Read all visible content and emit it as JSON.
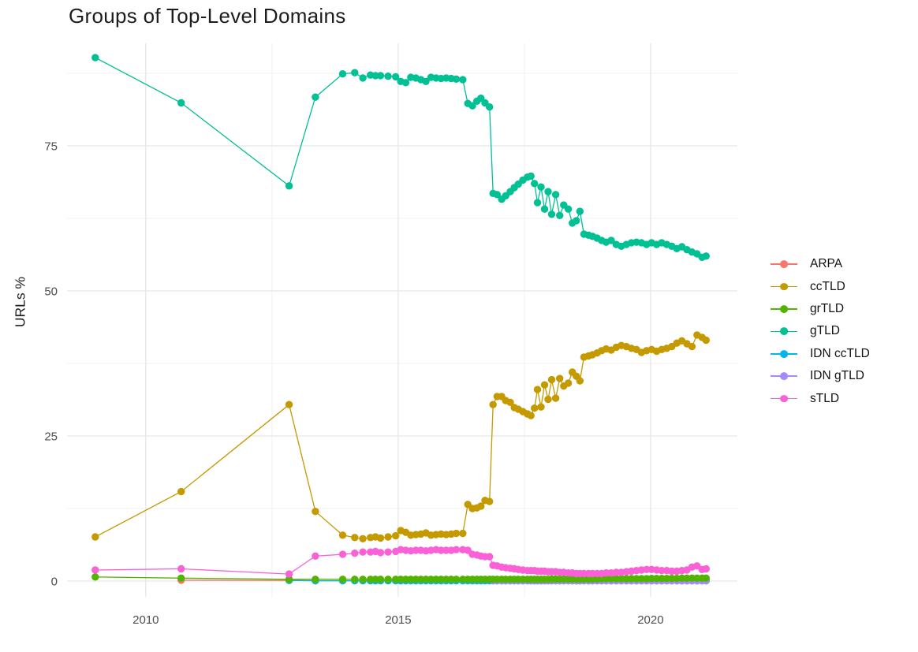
{
  "title": "Groups of Top-Level Domains",
  "y_axis_title": "URLs %",
  "legend": {
    "items": [
      {
        "label": "ARPA",
        "color": "#F8766D"
      },
      {
        "label": "ccTLD",
        "color": "#C49A00"
      },
      {
        "label": "grTLD",
        "color": "#53B400"
      },
      {
        "label": "gTLD",
        "color": "#00C094"
      },
      {
        "label": "IDN ccTLD",
        "color": "#00B6EB"
      },
      {
        "label": "IDN gTLD",
        "color": "#A58AFF"
      },
      {
        "label": "sTLD",
        "color": "#FB61D7"
      }
    ]
  },
  "chart_data": {
    "type": "line",
    "title": "Groups of Top-Level Domains",
    "xlabel": "",
    "ylabel": "URLs %",
    "grid": true,
    "legend_position": "right",
    "x_ticks": [
      2010,
      2015,
      2020
    ],
    "x_minor": [
      2012.5,
      2017.5
    ],
    "y_ticks": [
      0,
      25,
      50,
      75
    ],
    "y_minor": [
      12.5,
      37.5,
      62.5,
      87.5
    ],
    "x_domain": [
      2008.44,
      2021.72
    ],
    "y_domain": [
      -2.72,
      92.66
    ],
    "colors": {
      "grid_major": "#E6E6E6",
      "grid_minor": "#F1F1F1",
      "tick_label": "#4d4d4d"
    },
    "x": [
      2009.0,
      2010.7,
      2012.84,
      2013.36,
      2013.9,
      2014.14,
      2014.3,
      2014.45,
      2014.55,
      2014.65,
      2014.8,
      2014.95,
      2015.05,
      2015.15,
      2015.25,
      2015.35,
      2015.45,
      2015.55,
      2015.65,
      2015.75,
      2015.85,
      2015.95,
      2016.05,
      2016.15,
      2016.28,
      2016.38,
      2016.47,
      2016.56,
      2016.64,
      2016.72,
      2016.81,
      2016.88,
      2016.96,
      2017.05,
      2017.13,
      2017.22,
      2017.3,
      2017.38,
      2017.47,
      2017.56,
      2017.63,
      2017.7,
      2017.76,
      2017.83,
      2017.9,
      2017.97,
      2018.04,
      2018.12,
      2018.2,
      2018.28,
      2018.37,
      2018.45,
      2018.53,
      2018.6,
      2018.68,
      2018.77,
      2018.85,
      2018.94,
      2019.03,
      2019.12,
      2019.22,
      2019.32,
      2019.42,
      2019.52,
      2019.62,
      2019.72,
      2019.82,
      2019.92,
      2020.02,
      2020.12,
      2020.22,
      2020.32,
      2020.42,
      2020.52,
      2020.62,
      2020.72,
      2020.82,
      2020.92,
      2021.02,
      2021.1
    ],
    "series": [
      {
        "name": "ARPA",
        "color": "#F8766D",
        "values": [
          null,
          0.15,
          0.1,
          0.05,
          0.05,
          0.05,
          0.05,
          0.05,
          0.05,
          0.05,
          0.05,
          0.05,
          0.05,
          0.05,
          0.05,
          0.05,
          0.05,
          0.05,
          0.05,
          0.05,
          0.05,
          0.05,
          0.05,
          0.05,
          0.05,
          0.05,
          0.05,
          0.05,
          0.05,
          0.05,
          0.05,
          0.05,
          0.05,
          0.05,
          0.05,
          0.05,
          0.05,
          0.05,
          0.05,
          0.05,
          0.05,
          0.05,
          0.05,
          0.05,
          0.05,
          0.05,
          0.05,
          0.05,
          0.05,
          0.05,
          0.05,
          0.05,
          0.05,
          0.05,
          0.05,
          0.05,
          0.05,
          0.05,
          0.05,
          0.05,
          0.05,
          0.05,
          0.05,
          0.05,
          0.05,
          0.05,
          0.05,
          0.05,
          0.05,
          0.05,
          0.05,
          0.05,
          0.05,
          0.05,
          0.05,
          0.05,
          0.05,
          0.05,
          0.05,
          0.05
        ]
      },
      {
        "name": "IDN ccTLD",
        "color": "#00B6EB",
        "values": [
          null,
          null,
          0.1,
          0.05,
          0.05,
          0.05,
          0.05,
          0.05,
          0.05,
          0.05,
          0.05,
          0.05,
          0.05,
          0.05,
          0.05,
          0.05,
          0.05,
          0.05,
          0.05,
          0.05,
          0.05,
          0.05,
          0.05,
          0.05,
          0.05,
          0.05,
          0.05,
          0.05,
          0.05,
          0.05,
          0.05,
          0.05,
          0.05,
          0.05,
          0.05,
          0.05,
          0.05,
          0.05,
          0.05,
          0.05,
          0.05,
          0.05,
          0.05,
          0.05,
          0.05,
          0.05,
          0.05,
          0.05,
          0.05,
          0.05,
          0.05,
          0.05,
          0.05,
          0.05,
          0.05,
          0.05,
          0.05,
          0.05,
          0.05,
          0.05,
          0.05,
          0.05,
          0.05,
          0.05,
          0.05,
          0.05,
          0.05,
          0.05,
          0.05,
          0.05,
          0.05,
          0.05,
          0.05,
          0.05,
          0.05,
          0.05,
          0.05,
          0.05,
          0.05,
          0.05
        ]
      },
      {
        "name": "IDN gTLD",
        "color": "#A58AFF",
        "values": [
          null,
          null,
          null,
          null,
          null,
          null,
          null,
          null,
          null,
          null,
          null,
          null,
          null,
          null,
          null,
          null,
          null,
          null,
          null,
          null,
          null,
          null,
          null,
          null,
          null,
          null,
          null,
          null,
          null,
          null,
          null,
          0.05,
          0.05,
          0.05,
          0.05,
          0.05,
          0.05,
          0.05,
          0.05,
          0.05,
          0.05,
          0.05,
          0.05,
          0.05,
          0.05,
          0.05,
          0.05,
          0.05,
          0.05,
          0.05,
          0.05,
          0.05,
          0.05,
          0.05,
          0.05,
          0.05,
          0.05,
          0.05,
          0.05,
          0.05,
          0.05,
          0.05,
          0.05,
          0.05,
          0.05,
          0.05,
          0.05,
          0.05,
          0.05,
          0.05,
          0.05,
          0.05,
          0.05,
          0.05,
          0.05,
          0.05,
          0.05,
          0.05,
          0.05,
          0.05
        ]
      },
      {
        "name": "grTLD",
        "color": "#53B400",
        "values": [
          0.7,
          0.5,
          0.3,
          0.3,
          0.3,
          0.3,
          0.3,
          0.3,
          0.3,
          0.3,
          0.3,
          0.3,
          0.3,
          0.3,
          0.3,
          0.3,
          0.3,
          0.3,
          0.3,
          0.3,
          0.3,
          0.3,
          0.3,
          0.3,
          0.3,
          0.3,
          0.3,
          0.3,
          0.3,
          0.3,
          0.3,
          0.3,
          0.3,
          0.3,
          0.3,
          0.3,
          0.3,
          0.3,
          0.3,
          0.3,
          0.3,
          0.3,
          0.3,
          0.3,
          0.3,
          0.3,
          0.35,
          0.35,
          0.35,
          0.35,
          0.35,
          0.35,
          0.35,
          0.35,
          0.35,
          0.35,
          0.35,
          0.35,
          0.4,
          0.4,
          0.4,
          0.4,
          0.4,
          0.4,
          0.4,
          0.4,
          0.4,
          0.4,
          0.45,
          0.45,
          0.45,
          0.45,
          0.45,
          0.45,
          0.5,
          0.5,
          0.5,
          0.5,
          0.5,
          0.5
        ]
      },
      {
        "name": "ccTLD",
        "color": "#C49A00",
        "values": [
          7.6,
          15.4,
          30.4,
          12.0,
          7.9,
          7.5,
          7.3,
          7.5,
          7.6,
          7.4,
          7.6,
          7.8,
          8.7,
          8.4,
          7.9,
          8.0,
          8.1,
          8.3,
          7.9,
          8.0,
          8.1,
          8.0,
          8.1,
          8.2,
          8.2,
          13.2,
          12.5,
          12.6,
          12.9,
          13.9,
          13.7,
          30.4,
          31.8,
          31.8,
          31.1,
          30.8,
          29.9,
          29.6,
          29.2,
          28.8,
          28.5,
          29.8,
          33.0,
          30.0,
          33.8,
          31.3,
          34.7,
          31.5,
          34.9,
          33.6,
          34.1,
          36.0,
          35.3,
          34.5,
          38.6,
          38.8,
          39.0,
          39.3,
          39.7,
          40.0,
          39.8,
          40.3,
          40.6,
          40.4,
          40.1,
          39.9,
          39.4,
          39.7,
          39.9,
          39.6,
          39.9,
          40.1,
          40.4,
          41.0,
          41.4,
          40.9,
          40.4,
          42.4,
          42.0,
          41.5
        ]
      },
      {
        "name": "gTLD",
        "color": "#00C094",
        "values": [
          90.2,
          82.4,
          68.1,
          83.4,
          87.4,
          87.6,
          86.7,
          87.2,
          87.1,
          87.1,
          87.0,
          86.9,
          86.1,
          85.9,
          86.8,
          86.7,
          86.4,
          86.1,
          86.8,
          86.7,
          86.6,
          86.7,
          86.6,
          86.5,
          86.4,
          82.3,
          81.9,
          82.7,
          83.2,
          82.4,
          81.7,
          66.8,
          66.6,
          65.8,
          66.4,
          67.1,
          67.8,
          68.4,
          69.1,
          69.6,
          69.8,
          68.5,
          65.2,
          67.9,
          64.1,
          67.1,
          63.2,
          66.6,
          63.0,
          64.8,
          64.1,
          61.7,
          62.1,
          63.7,
          59.8,
          59.6,
          59.4,
          59.1,
          58.7,
          58.4,
          58.7,
          58.0,
          57.7,
          58.0,
          58.3,
          58.4,
          58.3,
          58.0,
          58.3,
          58.0,
          58.3,
          58.0,
          57.7,
          57.3,
          57.6,
          57.1,
          56.7,
          56.4,
          55.8,
          56.0
        ]
      },
      {
        "name": "sTLD",
        "color": "#FB61D7",
        "values": [
          1.9,
          2.1,
          1.2,
          4.3,
          4.6,
          4.8,
          5.0,
          5.0,
          5.1,
          4.9,
          5.0,
          5.1,
          5.4,
          5.3,
          5.2,
          5.3,
          5.3,
          5.2,
          5.3,
          5.4,
          5.3,
          5.3,
          5.3,
          5.4,
          5.4,
          5.3,
          4.6,
          4.5,
          4.3,
          4.2,
          4.2,
          2.7,
          2.6,
          2.4,
          2.3,
          2.2,
          2.1,
          2.0,
          1.9,
          1.8,
          1.8,
          1.8,
          1.7,
          1.7,
          1.7,
          1.6,
          1.6,
          1.6,
          1.5,
          1.5,
          1.4,
          1.4,
          1.3,
          1.3,
          1.3,
          1.3,
          1.3,
          1.3,
          1.3,
          1.4,
          1.4,
          1.5,
          1.5,
          1.6,
          1.7,
          1.8,
          1.9,
          2.0,
          2.0,
          1.9,
          1.8,
          1.8,
          1.7,
          1.7,
          1.8,
          1.9,
          2.4,
          2.6,
          2.0,
          2.1
        ]
      }
    ]
  }
}
